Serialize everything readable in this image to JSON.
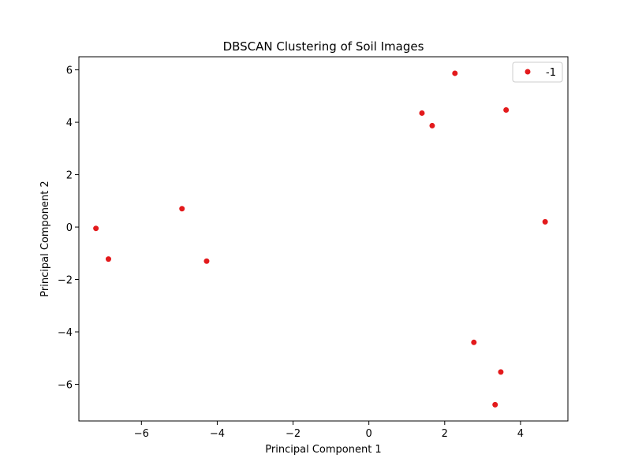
{
  "chart_data": {
    "type": "scatter",
    "title": "DBSCAN Clustering of Soil Images",
    "xlabel": "Principal Component 1",
    "ylabel": "Principal Component 2",
    "xlim": [
      -7.65,
      5.25
    ],
    "ylim": [
      -7.4,
      6.5
    ],
    "xticks": [
      -6,
      -4,
      -2,
      0,
      2,
      4
    ],
    "yticks": [
      -6,
      -4,
      -2,
      0,
      2,
      4,
      6
    ],
    "grid": false,
    "legend": {
      "placement": "top-right",
      "entries": [
        {
          "label": "-1",
          "color": "#e31a1c"
        }
      ]
    },
    "series": [
      {
        "name": "-1",
        "color": "#e31a1c",
        "points": [
          {
            "x": -7.2,
            "y": -0.05
          },
          {
            "x": -6.87,
            "y": -1.22
          },
          {
            "x": -4.93,
            "y": 0.7
          },
          {
            "x": -4.28,
            "y": -1.3
          },
          {
            "x": 1.4,
            "y": 4.35
          },
          {
            "x": 1.67,
            "y": 3.87
          },
          {
            "x": 2.27,
            "y": 5.87
          },
          {
            "x": 3.62,
            "y": 4.47
          },
          {
            "x": 4.65,
            "y": 0.2
          },
          {
            "x": 2.77,
            "y": -4.4
          },
          {
            "x": 3.48,
            "y": -5.53
          },
          {
            "x": 3.33,
            "y": -6.78
          }
        ]
      }
    ]
  }
}
